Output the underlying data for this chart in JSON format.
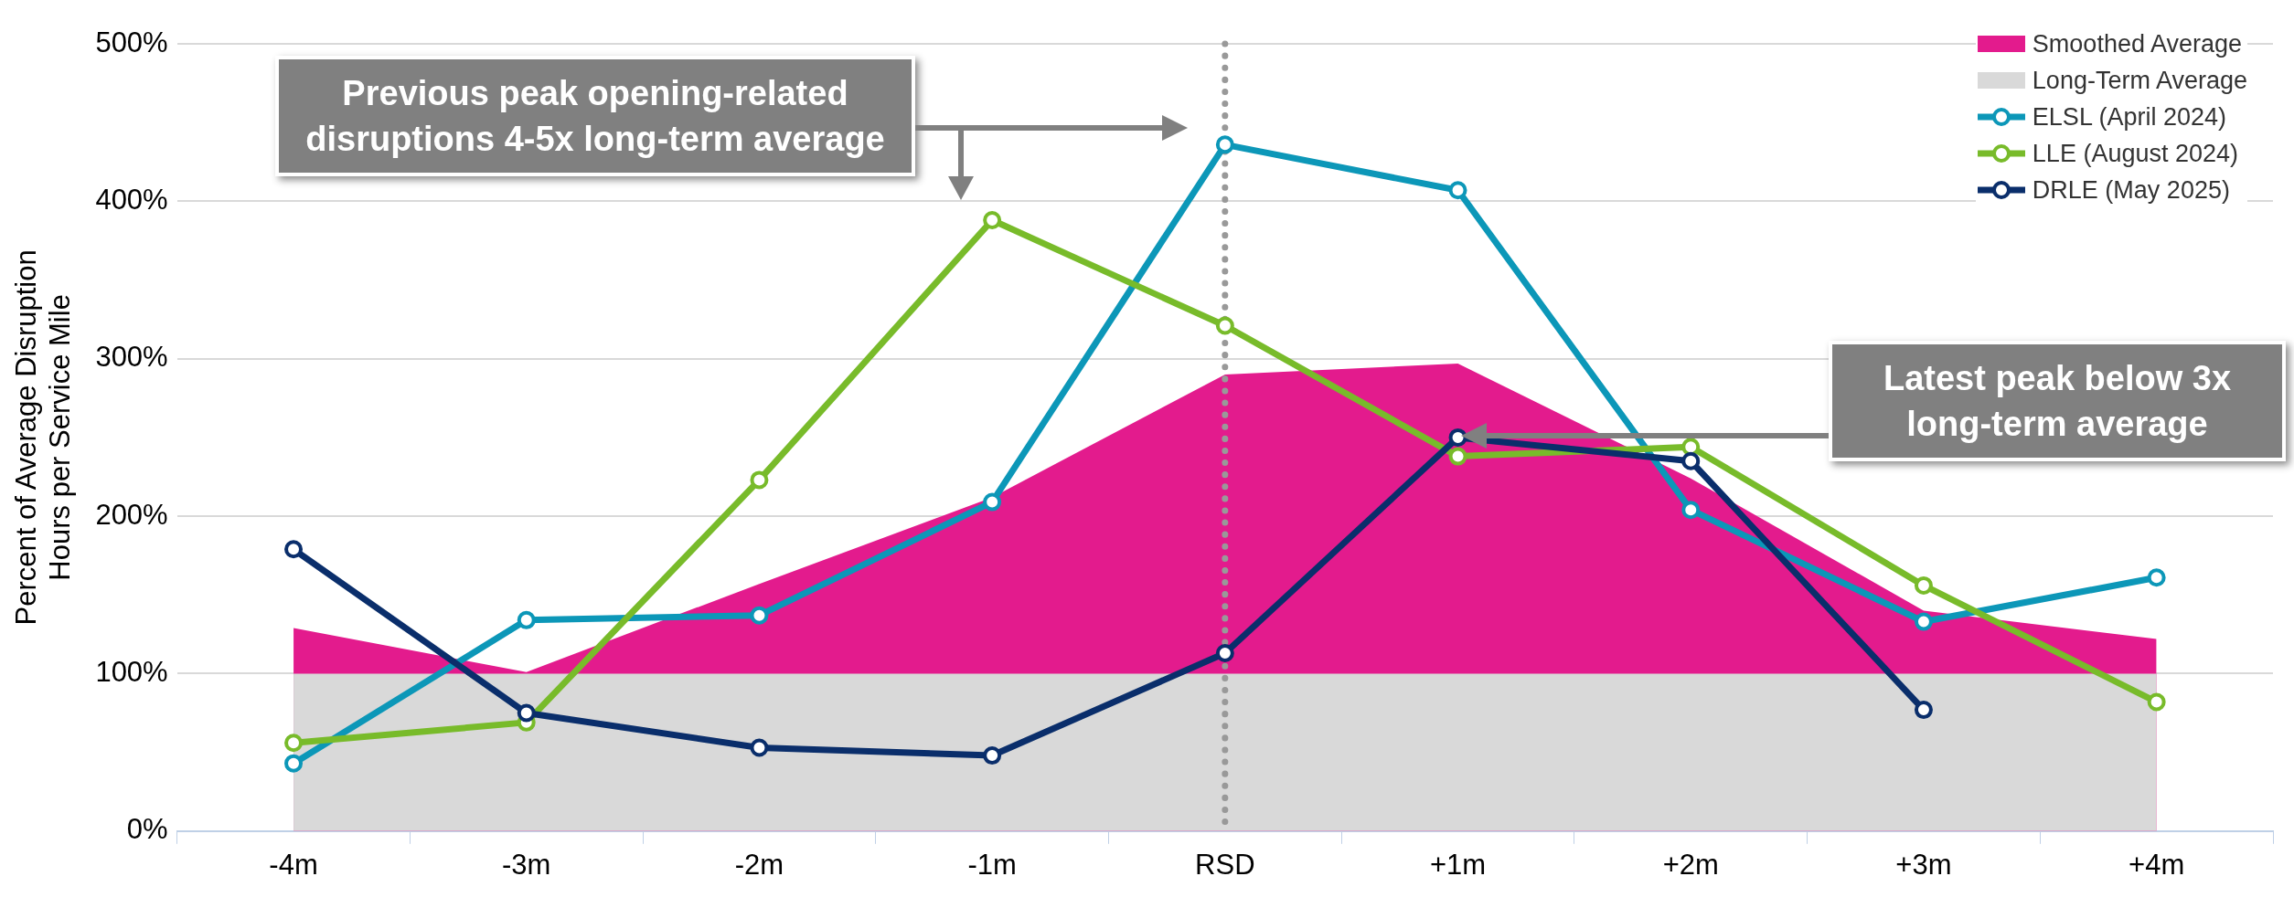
{
  "chart_data": {
    "type": "line",
    "ylabel": "Percent of Average Disruption Hours per Service Mile",
    "categories": [
      "-4m",
      "-3m",
      "-2m",
      "-1m",
      "RSD",
      "+1m",
      "+2m",
      "+3m",
      "+4m"
    ],
    "series": [
      {
        "name": "Smoothed Average",
        "type": "area",
        "marker": "none",
        "color": "#e31b8d",
        "values": [
          129,
          101,
          157,
          212,
          290,
          297,
          224,
          140,
          122
        ]
      },
      {
        "name": "Long-Term Average",
        "type": "area",
        "marker": "none",
        "color": "#d9d9d9",
        "values": [
          100,
          100,
          100,
          100,
          100,
          100,
          100,
          100,
          100
        ]
      },
      {
        "name": "ELSL (April 2024)",
        "color": "#0c97b8",
        "values": [
          43,
          134,
          137,
          209,
          436,
          407,
          204,
          133,
          161
        ]
      },
      {
        "name": "LLE (August 2024)",
        "color": "#78bb2a",
        "values": [
          56,
          69,
          223,
          388,
          321,
          238,
          244,
          156,
          82
        ]
      },
      {
        "name": "DRLE (May 2025)",
        "color": "#0a2e6b",
        "values": [
          179,
          75,
          53,
          48,
          113,
          250,
          235,
          77,
          null
        ]
      }
    ],
    "ylim": [
      0,
      500
    ],
    "yticks": [
      {
        "value": 0,
        "label": "0%"
      },
      {
        "value": 100,
        "label": "100%"
      },
      {
        "value": 200,
        "label": "200%"
      },
      {
        "value": 300,
        "label": "300%"
      },
      {
        "value": 400,
        "label": "400%"
      },
      {
        "value": 500,
        "label": "500%"
      }
    ],
    "grid": "y",
    "legend": "top right",
    "marker": "circle",
    "line_style": "solid",
    "ref_lines": [
      {
        "axis": "x",
        "value": "RSD",
        "color": "#999999",
        "line_style": "dotted"
      }
    ],
    "annotations": [
      "Previous peak opening-related disruptions 4-5x long-term average",
      "Latest peak below 3x long-term average"
    ]
  }
}
